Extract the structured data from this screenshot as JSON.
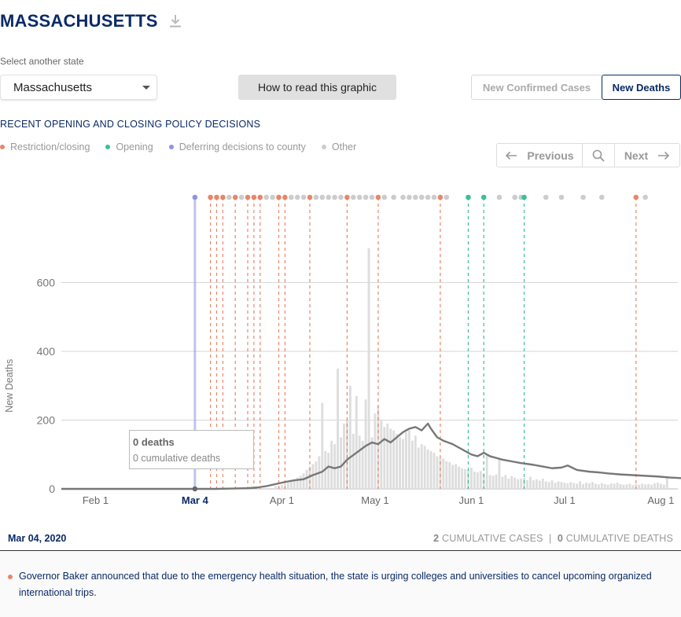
{
  "header": {
    "title": "MASSACHUSETTS",
    "download_icon": "download-icon"
  },
  "controls": {
    "select_label": "Select another state",
    "state_value": "Massachusetts",
    "howto_label": "How to read this graphic",
    "toggle_cases": "New Confirmed Cases",
    "toggle_deaths": "New Deaths",
    "active_toggle": "New Deaths"
  },
  "section_title": "RECENT OPENING AND CLOSING POLICY DECISIONS",
  "legend": [
    {
      "label": "Restriction/closing",
      "color": "#e8866a"
    },
    {
      "label": "Opening",
      "color": "#3cbf98"
    },
    {
      "label": "Deferring decisions to county",
      "color": "#8a95e8"
    },
    {
      "label": "Other",
      "color": "#cccccc"
    }
  ],
  "nav": {
    "previous_label": "Previous",
    "next_label": "Next",
    "search_icon": "search-icon"
  },
  "chart_data": {
    "type": "bar",
    "ylabel": "New Deaths",
    "ylim": [
      0,
      700
    ],
    "yticks": [
      0,
      200,
      400,
      600
    ],
    "x_start": "Jan 21",
    "x_ticks": [
      {
        "label": "Feb 1",
        "day": 11
      },
      {
        "label": "M",
        "day": 40
      },
      {
        "label": "Apr 1",
        "day": 71
      },
      {
        "label": "May 1",
        "day": 101
      },
      {
        "label": "Jun 1",
        "day": 132
      },
      {
        "label": "Jul 1",
        "day": 162
      },
      {
        "label": "Aug 1",
        "day": 193
      }
    ],
    "highlight_label": "Mar 4",
    "highlight_day": 43,
    "grid": true,
    "series": [
      {
        "type": "bar",
        "color": "#dddddd",
        "start_day": 69,
        "values": [
          8,
          10,
          12,
          15,
          18,
          22,
          27,
          33,
          38,
          45,
          55,
          65,
          72,
          80,
          95,
          250,
          110,
          105,
          140,
          130,
          350,
          150,
          190,
          200,
          300,
          160,
          270,
          155,
          140,
          260,
          760,
          150,
          220,
          240,
          200,
          180,
          190,
          175,
          170,
          160,
          150,
          145,
          165,
          170,
          140,
          155,
          120,
          130,
          125,
          115,
          110,
          105,
          95,
          90,
          88,
          80,
          78,
          70,
          72,
          65,
          60,
          58,
          55,
          62,
          50,
          48,
          52,
          45,
          100,
          40,
          38,
          42,
          85,
          35,
          40,
          30,
          37,
          33,
          28,
          30,
          32,
          26,
          35,
          25,
          28,
          24,
          30,
          22,
          20,
          25,
          18,
          22,
          20,
          18,
          16,
          20,
          17,
          15,
          22,
          14,
          18,
          16,
          20,
          15,
          13,
          17,
          14,
          12,
          16,
          15,
          18,
          14,
          12,
          13,
          15,
          11,
          14,
          12,
          15,
          13,
          14,
          12,
          16,
          18,
          15,
          12,
          34
        ]
      },
      {
        "type": "line",
        "name": "7-day average",
        "color": "#777777",
        "points": [
          [
            0,
            0
          ],
          [
            20,
            0
          ],
          [
            40,
            0
          ],
          [
            50,
            0
          ],
          [
            55,
            1
          ],
          [
            60,
            2
          ],
          [
            63,
            4
          ],
          [
            66,
            8
          ],
          [
            69,
            14
          ],
          [
            72,
            20
          ],
          [
            75,
            25
          ],
          [
            78,
            28
          ],
          [
            81,
            40
          ],
          [
            84,
            50
          ],
          [
            86,
            65
          ],
          [
            88,
            60
          ],
          [
            90,
            65
          ],
          [
            92,
            85
          ],
          [
            95,
            105
          ],
          [
            98,
            125
          ],
          [
            100,
            135
          ],
          [
            102,
            130
          ],
          [
            104,
            145
          ],
          [
            106,
            135
          ],
          [
            108,
            150
          ],
          [
            110,
            165
          ],
          [
            112,
            175
          ],
          [
            114,
            180
          ],
          [
            116,
            170
          ],
          [
            118,
            190
          ],
          [
            119,
            175
          ],
          [
            121,
            150
          ],
          [
            123,
            140
          ],
          [
            126,
            130
          ],
          [
            128,
            120
          ],
          [
            130,
            110
          ],
          [
            132,
            100
          ],
          [
            134,
            95
          ],
          [
            136,
            105
          ],
          [
            138,
            95
          ],
          [
            140,
            90
          ],
          [
            142,
            85
          ],
          [
            145,
            80
          ],
          [
            148,
            75
          ],
          [
            152,
            70
          ],
          [
            155,
            65
          ],
          [
            158,
            60
          ],
          [
            161,
            62
          ],
          [
            163,
            68
          ],
          [
            166,
            55
          ],
          [
            170,
            50
          ],
          [
            173,
            48
          ],
          [
            176,
            45
          ],
          [
            180,
            42
          ],
          [
            184,
            40
          ],
          [
            188,
            38
          ],
          [
            192,
            36
          ],
          [
            196,
            33
          ],
          [
            200,
            31
          ],
          [
            204,
            30
          ],
          [
            208,
            29
          ],
          [
            212,
            28
          ]
        ]
      }
    ],
    "policy_events": [
      {
        "day": 43,
        "type": "deferring"
      },
      {
        "day": 48,
        "type": "restriction"
      },
      {
        "day": 50,
        "type": "restriction"
      },
      {
        "day": 52,
        "type": "restriction"
      },
      {
        "day": 54,
        "type": "other"
      },
      {
        "day": 56,
        "type": "restriction"
      },
      {
        "day": 58,
        "type": "other"
      },
      {
        "day": 60,
        "type": "restriction"
      },
      {
        "day": 62,
        "type": "restriction"
      },
      {
        "day": 64,
        "type": "restriction"
      },
      {
        "day": 66,
        "type": "other"
      },
      {
        "day": 68,
        "type": "other"
      },
      {
        "day": 70,
        "type": "restriction"
      },
      {
        "day": 72,
        "type": "restriction"
      },
      {
        "day": 74,
        "type": "other"
      },
      {
        "day": 76,
        "type": "other"
      },
      {
        "day": 78,
        "type": "other"
      },
      {
        "day": 80,
        "type": "restriction"
      },
      {
        "day": 82,
        "type": "other"
      },
      {
        "day": 84,
        "type": "other"
      },
      {
        "day": 86,
        "type": "other"
      },
      {
        "day": 88,
        "type": "other"
      },
      {
        "day": 90,
        "type": "other"
      },
      {
        "day": 92,
        "type": "restriction"
      },
      {
        "day": 94,
        "type": "other"
      },
      {
        "day": 96,
        "type": "other"
      },
      {
        "day": 98,
        "type": "other"
      },
      {
        "day": 100,
        "type": "other"
      },
      {
        "day": 102,
        "type": "restriction"
      },
      {
        "day": 104,
        "type": "other"
      },
      {
        "day": 107,
        "type": "other"
      },
      {
        "day": 110,
        "type": "other"
      },
      {
        "day": 112,
        "type": "other"
      },
      {
        "day": 114,
        "type": "other"
      },
      {
        "day": 116,
        "type": "other"
      },
      {
        "day": 118,
        "type": "other"
      },
      {
        "day": 120,
        "type": "other"
      },
      {
        "day": 122,
        "type": "restriction"
      },
      {
        "day": 124,
        "type": "other"
      },
      {
        "day": 131,
        "type": "opening"
      },
      {
        "day": 136,
        "type": "opening"
      },
      {
        "day": 141,
        "type": "other"
      },
      {
        "day": 146,
        "type": "other"
      },
      {
        "day": 148,
        "type": "other"
      },
      {
        "day": 149,
        "type": "opening"
      },
      {
        "day": 156,
        "type": "other"
      },
      {
        "day": 161,
        "type": "other"
      },
      {
        "day": 168,
        "type": "other"
      },
      {
        "day": 174,
        "type": "other"
      },
      {
        "day": 185,
        "type": "restriction"
      },
      {
        "day": 188,
        "type": "other"
      }
    ]
  },
  "tooltip": {
    "deaths": "0 deaths",
    "cumulative": "0 cumulative deaths"
  },
  "info": {
    "date": "Mar 04, 2020",
    "cum_cases_value": "2",
    "cum_cases_label": "CUMULATIVE CASES",
    "separator": "|",
    "cum_deaths_value": "0",
    "cum_deaths_label": "CUMULATIVE DEATHS"
  },
  "decision": {
    "text": "Governor Baker announced that due to the emergency health situation, the state is urging colleges and universities to cancel upcoming organized international trips."
  }
}
